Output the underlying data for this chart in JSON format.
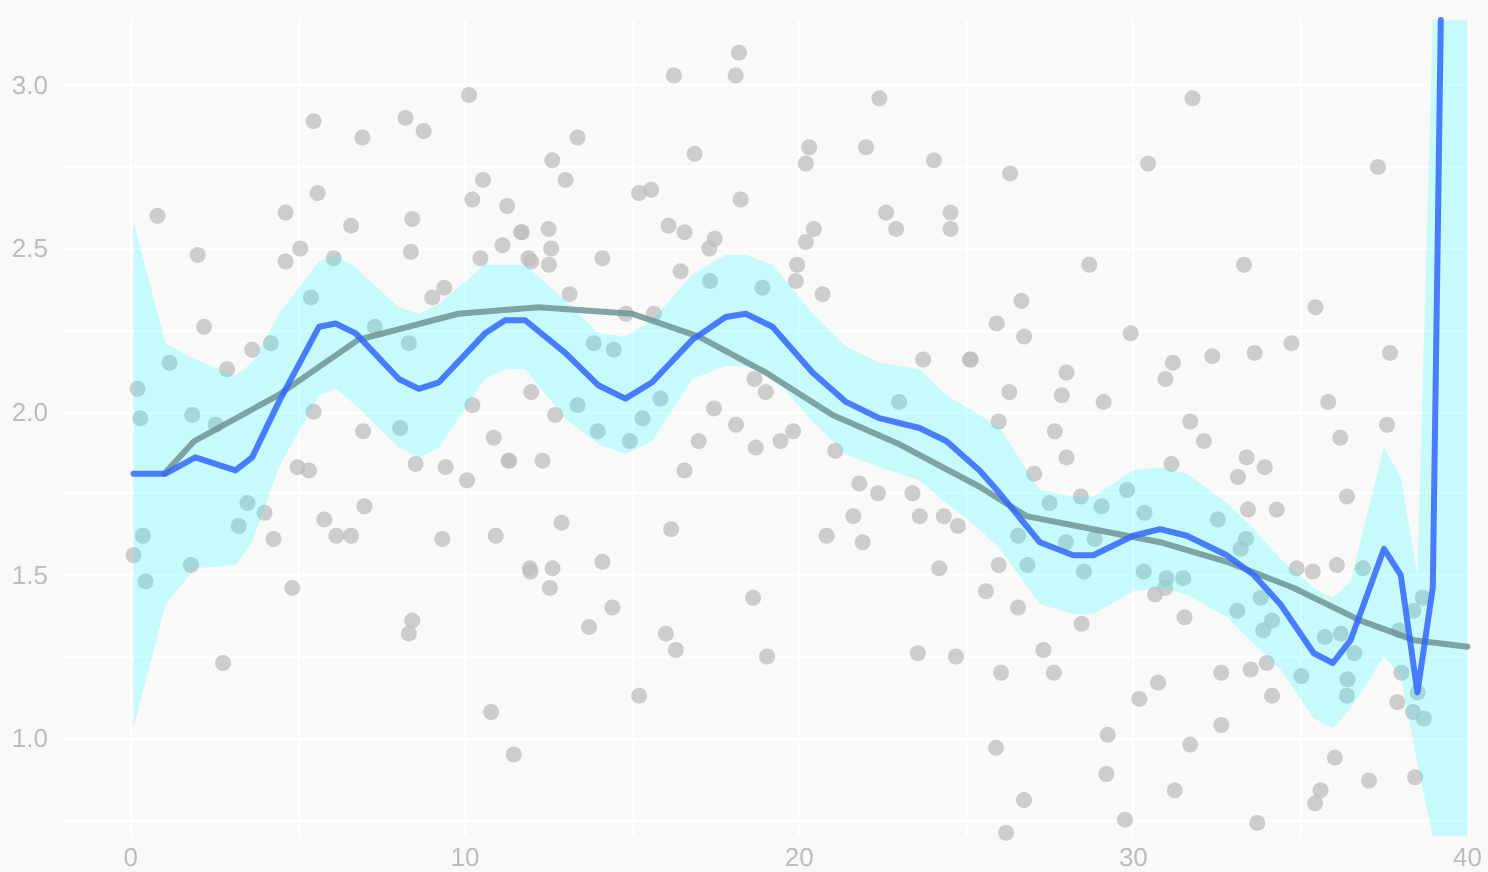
{
  "chart_data": {
    "type": "scatter",
    "xlim": [
      -2,
      40
    ],
    "ylim": [
      0.7,
      3.2
    ],
    "xticks": [
      0,
      {
        "value": 5,
        "label": null
      },
      10,
      {
        "value": 15,
        "label": null
      },
      20,
      {
        "value": 25,
        "label": null
      },
      30,
      {
        "value": 35,
        "label": null
      },
      40
    ],
    "yticks": [
      {
        "value": 0.75,
        "label": null
      },
      {
        "value": 1,
        "label": "1.0"
      },
      {
        "value": 1.25,
        "label": null
      },
      {
        "value": 1.5,
        "label": "1.5"
      },
      {
        "value": 1.75,
        "label": null
      },
      {
        "value": 2,
        "label": "2.0"
      },
      {
        "value": 2.25,
        "label": null
      },
      {
        "value": 2.5,
        "label": "2.5"
      },
      {
        "value": 2.75,
        "label": null
      },
      {
        "value": 3,
        "label": "3.0"
      }
    ],
    "grid": true,
    "series": [
      {
        "color": "#bdbdbd",
        "marker": "circle",
        "x": [
          0.8,
          2.0,
          2.19,
          0.2,
          0.28,
          0.08,
          0.44,
          0.36,
          1.16,
          1.8,
          1.84,
          2.54,
          2.88,
          2.76,
          3.63,
          4.19,
          4.63,
          5.47,
          5.59,
          5.07,
          4.63,
          5.39,
          5.47,
          4.99,
          5.33,
          4.83,
          4.27,
          4.0,
          3.49,
          3.23,
          5.79,
          6.15,
          6.59,
          6.99,
          6.95,
          6.07,
          6.59,
          6.93,
          8.22,
          8.76,
          8.42,
          8.38,
          9.02,
          9.38,
          8.06,
          8.52,
          9.42,
          9.32,
          10.06,
          10.22,
          10.12,
          10.22,
          10.54,
          10.46,
          11.26,
          11.12,
          11.7,
          11.98,
          10.86,
          11.32,
          10.92,
          11.96,
          8.42,
          8.32,
          10.78,
          11.46,
          7.3,
          8.32,
          16.25,
          18.1,
          18.2,
          13.37,
          12.61,
          13.01,
          11.68,
          12.5,
          12.58,
          12.51,
          11.9,
          14.11,
          13.13,
          15.21,
          15.57,
          16.87,
          16.09,
          16.57,
          17.31,
          17.47,
          16.45,
          18.25,
          20.3,
          20.2,
          22.0,
          22.4,
          24.03,
          22.6,
          22.9,
          24.53,
          24.53,
          25.13,
          20.44,
          20.2,
          19.94,
          19.9,
          20.7,
          18.9,
          17.33,
          15.65,
          14.81,
          13.85,
          14.45,
          11.98,
          12.7,
          13.37,
          13.97,
          14.93,
          15.31,
          15.85,
          17.45,
          16.99,
          16.57,
          18.11,
          18.7,
          18.66,
          19.0,
          19.44,
          19.82,
          21.08,
          21.8,
          21.62,
          21.9,
          20.82,
          22.36,
          23.39,
          23.61,
          24.33,
          24.75,
          24.19,
          23.71,
          22.99,
          11.3,
          12.32,
          12.89,
          11.94,
          12.62,
          12.54,
          14.11,
          13.71,
          14.41,
          16.17,
          16.01,
          16.31,
          15.21,
          18.62,
          19.04,
          23.55,
          24.69,
          31.77,
          30.44,
          26.31,
          37.32,
          28.68,
          33.31,
          26.65,
          26.73,
          25.91,
          25.11,
          29.92,
          35.45,
          34.73,
          37.68,
          33.63,
          32.36,
          31.18,
          30.96,
          28.0,
          27.86,
          29.11,
          26.29,
          25.97,
          27.65,
          28.0,
          31.7,
          32.11,
          35.83,
          36.19,
          37.59,
          33.39,
          33.93,
          33.13,
          31.14,
          27.03,
          36.39,
          34.29,
          27.49,
          28.43,
          29.05,
          29.81,
          30.33,
          32.53,
          33.43,
          26.55,
          27.98,
          28.84,
          26.83,
          25.97,
          28.52,
          30.31,
          31.49,
          30.99,
          33.37,
          33.21,
          34.89,
          35.37,
          36.09,
          36.87,
          30.95,
          30.65,
          25.59,
          26.55,
          28.45,
          31.53,
          33.81,
          33.11,
          34.15,
          33.89,
          35.73,
          36.21,
          38.66,
          38.38,
          37.95,
          27.31,
          27.62,
          26.04,
          30.74,
          30.18,
          32.63,
          33.51,
          33.99,
          34.15,
          35.03,
          36.41,
          36.39,
          36.61,
          38.02,
          38.51,
          37.9,
          38.37,
          38.69,
          32.63,
          29.23,
          25.89,
          31.7,
          36.03,
          29.19,
          26.73,
          31.24,
          35.6,
          35.44,
          37.05,
          38.43,
          29.75,
          33.71,
          26.19
        ],
        "values": [
          2.6,
          2.48,
          2.26,
          2.07,
          1.98,
          1.56,
          1.48,
          1.62,
          2.15,
          1.53,
          1.99,
          1.96,
          2.13,
          1.23,
          2.19,
          2.21,
          2.61,
          2.89,
          2.67,
          2.5,
          2.46,
          2.35,
          2.0,
          1.83,
          1.82,
          1.46,
          1.61,
          1.69,
          1.72,
          1.65,
          1.67,
          1.62,
          1.62,
          1.71,
          1.94,
          2.47,
          2.57,
          2.84,
          2.9,
          2.86,
          2.59,
          2.49,
          2.35,
          2.38,
          1.95,
          1.84,
          1.83,
          1.61,
          1.79,
          2.02,
          2.97,
          2.65,
          2.71,
          2.47,
          2.63,
          2.51,
          2.55,
          2.46,
          1.92,
          1.85,
          1.62,
          1.51,
          1.36,
          1.32,
          1.08,
          0.95,
          2.26,
          2.21,
          3.03,
          3.03,
          3.1,
          2.84,
          2.77,
          2.71,
          2.55,
          2.56,
          2.5,
          2.45,
          2.47,
          2.47,
          2.36,
          2.67,
          2.68,
          2.79,
          2.57,
          2.55,
          2.5,
          2.53,
          2.43,
          2.65,
          2.81,
          2.76,
          2.81,
          2.96,
          2.77,
          2.61,
          2.56,
          2.61,
          2.56,
          2.16,
          2.56,
          2.52,
          2.45,
          2.4,
          2.36,
          2.38,
          2.4,
          2.3,
          2.3,
          2.21,
          2.19,
          2.06,
          1.99,
          2.02,
          1.94,
          1.91,
          1.98,
          2.04,
          2.01,
          1.91,
          1.82,
          1.96,
          1.89,
          2.1,
          2.06,
          1.91,
          1.94,
          1.88,
          1.78,
          1.68,
          1.6,
          1.62,
          1.75,
          1.75,
          1.68,
          1.68,
          1.65,
          1.52,
          2.16,
          2.03,
          1.85,
          1.85,
          1.66,
          1.52,
          1.52,
          1.46,
          1.54,
          1.34,
          1.4,
          1.64,
          1.32,
          1.27,
          1.13,
          1.43,
          1.25,
          1.26,
          1.25,
          2.96,
          2.76,
          2.73,
          2.75,
          2.45,
          2.45,
          2.34,
          2.23,
          2.27,
          2.16,
          2.24,
          2.32,
          2.21,
          2.18,
          2.18,
          2.17,
          2.15,
          2.1,
          2.12,
          2.05,
          2.03,
          2.06,
          1.97,
          1.94,
          1.86,
          1.97,
          1.91,
          2.03,
          1.92,
          1.96,
          1.86,
          1.83,
          1.8,
          1.84,
          1.81,
          1.74,
          1.7,
          1.72,
          1.74,
          1.71,
          1.76,
          1.69,
          1.67,
          1.7,
          1.62,
          1.6,
          1.61,
          1.53,
          1.53,
          1.51,
          1.51,
          1.49,
          1.49,
          1.61,
          1.58,
          1.52,
          1.51,
          1.53,
          1.52,
          1.46,
          1.44,
          1.45,
          1.4,
          1.35,
          1.37,
          1.43,
          1.39,
          1.36,
          1.33,
          1.31,
          1.32,
          1.43,
          1.39,
          1.33,
          1.27,
          1.2,
          1.2,
          1.17,
          1.12,
          1.2,
          1.21,
          1.23,
          1.13,
          1.19,
          1.18,
          1.13,
          1.26,
          1.2,
          1.14,
          1.11,
          1.08,
          1.06,
          1.04,
          1.01,
          0.97,
          0.98,
          0.94,
          0.89,
          0.81,
          0.84,
          0.84,
          0.8,
          0.87,
          0.88,
          0.75,
          0.74,
          0.71
        ]
      },
      {
        "type": "line",
        "color": "#6f9494",
        "marker": "none",
        "line_style": "solid",
        "x": [
          1.0,
          1.9,
          4.4,
          6.8,
          9.8,
          12.2,
          15.0,
          17.0,
          19.0,
          21.0,
          23.0,
          25.4,
          26.8,
          28.8,
          30.8,
          32.8,
          34.8,
          36.8,
          38.4,
          40.0
        ],
        "values": [
          1.81,
          1.91,
          2.05,
          2.22,
          2.3,
          2.32,
          2.3,
          2.23,
          2.12,
          1.99,
          1.9,
          1.77,
          1.68,
          1.64,
          1.6,
          1.54,
          1.46,
          1.36,
          1.3,
          1.28
        ]
      },
      {
        "type": "line",
        "color": "#3366ff",
        "marker": "none",
        "line_style": "solid",
        "x": [
          0.08,
          1.04,
          1.93,
          3.13,
          3.63,
          4.43,
          5.63,
          6.13,
          6.73,
          8.02,
          8.62,
          9.22,
          10.6,
          11.2,
          11.8,
          13.0,
          14.0,
          14.8,
          15.6,
          16.8,
          17.8,
          18.4,
          19.2,
          20.4,
          21.4,
          22.4,
          23.6,
          24.4,
          25.4,
          26.0,
          27.2,
          28.2,
          28.8,
          30.0,
          30.8,
          31.6,
          32.8,
          33.6,
          34.4,
          35.4,
          35.97,
          36.5,
          37.5,
          38.0,
          38.5,
          38.96,
          39.2,
          39.6,
          40.0
        ],
        "values": [
          1.81,
          1.81,
          1.86,
          1.82,
          1.86,
          2.03,
          2.26,
          2.27,
          2.24,
          2.1,
          2.07,
          2.09,
          2.24,
          2.28,
          2.28,
          2.18,
          2.08,
          2.04,
          2.09,
          2.22,
          2.29,
          2.3,
          2.26,
          2.12,
          2.03,
          1.98,
          1.95,
          1.91,
          1.82,
          1.75,
          1.6,
          1.56,
          1.56,
          1.62,
          1.64,
          1.62,
          1.56,
          1.5,
          1.41,
          1.26,
          1.23,
          1.3,
          1.58,
          1.5,
          1.14,
          1.46,
          3.2,
          null,
          null
        ],
        "lower": [
          1.03,
          1.41,
          1.52,
          1.53,
          1.6,
          1.83,
          2.05,
          2.07,
          2.02,
          1.89,
          1.86,
          1.89,
          2.1,
          2.13,
          2.13,
          1.98,
          1.9,
          1.87,
          1.91,
          2.1,
          2.14,
          2.14,
          2.11,
          1.97,
          1.87,
          1.83,
          1.79,
          1.72,
          1.64,
          1.58,
          1.41,
          1.38,
          1.38,
          1.45,
          1.46,
          1.44,
          1.37,
          1.29,
          1.21,
          1.06,
          1.03,
          1.09,
          1.25,
          1.19,
          0.92,
          0.7,
          0.7,
          0.7,
          0.7
        ],
        "upper": [
          2.58,
          2.21,
          2.16,
          2.11,
          2.15,
          2.3,
          2.46,
          2.48,
          2.44,
          2.32,
          2.3,
          2.33,
          2.45,
          2.45,
          2.45,
          2.34,
          2.24,
          2.23,
          2.28,
          2.42,
          2.48,
          2.48,
          2.45,
          2.3,
          2.2,
          2.15,
          2.13,
          2.05,
          1.99,
          1.95,
          1.76,
          1.74,
          1.74,
          1.82,
          1.83,
          1.81,
          1.72,
          1.64,
          1.55,
          1.46,
          1.43,
          1.48,
          1.89,
          1.8,
          1.5,
          3.2,
          3.2,
          3.2,
          3.2
        ]
      }
    ]
  }
}
